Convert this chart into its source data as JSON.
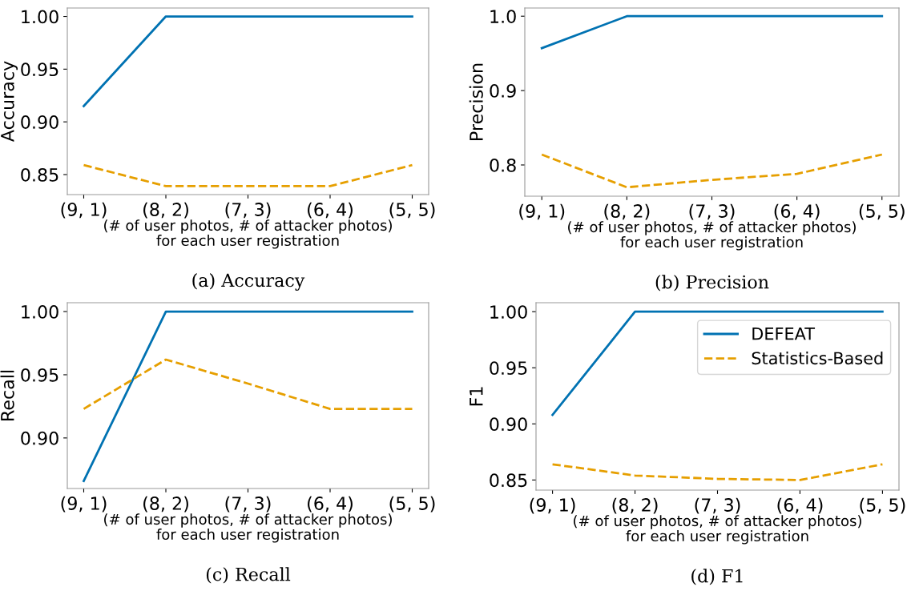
{
  "chart_data": [
    {
      "type": "line",
      "title": "(a) Accuracy",
      "xlabel": "(# of user photos, # of attacker photos)\nfor each user registration",
      "ylabel": "Accuracy",
      "categories": [
        "(9, 1)",
        "(8, 2)",
        "(7, 3)",
        "(6, 4)",
        "(5, 5)"
      ],
      "ylim": [
        0.831,
        1.008
      ],
      "yticks": [
        {
          "value": 0.85,
          "label": "0.85"
        },
        {
          "value": 0.9,
          "label": "0.90"
        },
        {
          "value": 0.95,
          "label": "0.95"
        },
        {
          "value": 1.0,
          "label": "1.00"
        }
      ],
      "grid": false,
      "legend": false,
      "series": [
        {
          "color": "#0072b2",
          "line_style": "solid",
          "values": [
            0.915,
            1.0,
            1.0,
            1.0,
            1.0
          ]
        },
        {
          "color": "#e69f00",
          "line_style": "dashed",
          "values": [
            0.859,
            0.839,
            0.839,
            0.839,
            0.859
          ]
        }
      ]
    },
    {
      "type": "line",
      "title": "(b) Precision",
      "xlabel": "(# of user photos, # of attacker photos)\nfor each user registration",
      "ylabel": "Precision",
      "categories": [
        "(9, 1)",
        "(8, 2)",
        "(7, 3)",
        "(6, 4)",
        "(5, 5)"
      ],
      "ylim": [
        0.758,
        1.011
      ],
      "yticks": [
        0.8,
        0.9,
        {
          "value": 1.0,
          "label": "1.0"
        }
      ],
      "grid": false,
      "legend": false,
      "series": [
        {
          "color": "#0072b2",
          "line_style": "solid",
          "values": [
            0.957,
            1.0,
            1.0,
            1.0,
            1.0
          ]
        },
        {
          "color": "#e69f00",
          "line_style": "dashed",
          "values": [
            0.814,
            0.77,
            0.78,
            0.788,
            0.814
          ]
        }
      ]
    },
    {
      "type": "line",
      "title": "(c) Recall",
      "xlabel": "(# of user photos, # of attacker photos)\nfor each user registration",
      "ylabel": "Recall",
      "categories": [
        "(9, 1)",
        "(8, 2)",
        "(7, 3)",
        "(6, 4)",
        "(5, 5)"
      ],
      "ylim": [
        0.86,
        1.007
      ],
      "yticks": [
        {
          "value": 0.9,
          "label": "0.90"
        },
        {
          "value": 0.95,
          "label": "0.95"
        },
        {
          "value": 1.0,
          "label": "1.00"
        }
      ],
      "grid": false,
      "legend": false,
      "series": [
        {
          "color": "#0072b2",
          "line_style": "solid",
          "values": [
            0.866,
            1.0,
            1.0,
            1.0,
            1.0
          ]
        },
        {
          "color": "#e69f00",
          "line_style": "dashed",
          "values": [
            0.923,
            0.962,
            0.943,
            0.923,
            0.923
          ]
        }
      ]
    },
    {
      "type": "line",
      "title": "(d) F1",
      "xlabel": "(# of user photos, # of attacker photos)\nfor each user registration",
      "ylabel": "F1",
      "categories": [
        "(9, 1)",
        "(8, 2)",
        "(7, 3)",
        "(6, 4)",
        "(5, 5)"
      ],
      "ylim": [
        0.841,
        1.008
      ],
      "yticks": [
        {
          "value": 0.85,
          "label": "0.85"
        },
        {
          "value": 0.9,
          "label": "0.90"
        },
        {
          "value": 0.95,
          "label": "0.95"
        },
        {
          "value": 1.0,
          "label": "1.00"
        }
      ],
      "grid": false,
      "legend": "top right",
      "series": [
        {
          "name": "DEFEAT",
          "color": "#0072b2",
          "line_style": "solid",
          "values": [
            0.908,
            1.0,
            1.0,
            1.0,
            1.0
          ]
        },
        {
          "name": "Statistics-Based",
          "color": "#e69f00",
          "line_style": "dashed",
          "values": [
            0.864,
            0.854,
            0.851,
            0.85,
            0.864
          ]
        }
      ]
    }
  ]
}
